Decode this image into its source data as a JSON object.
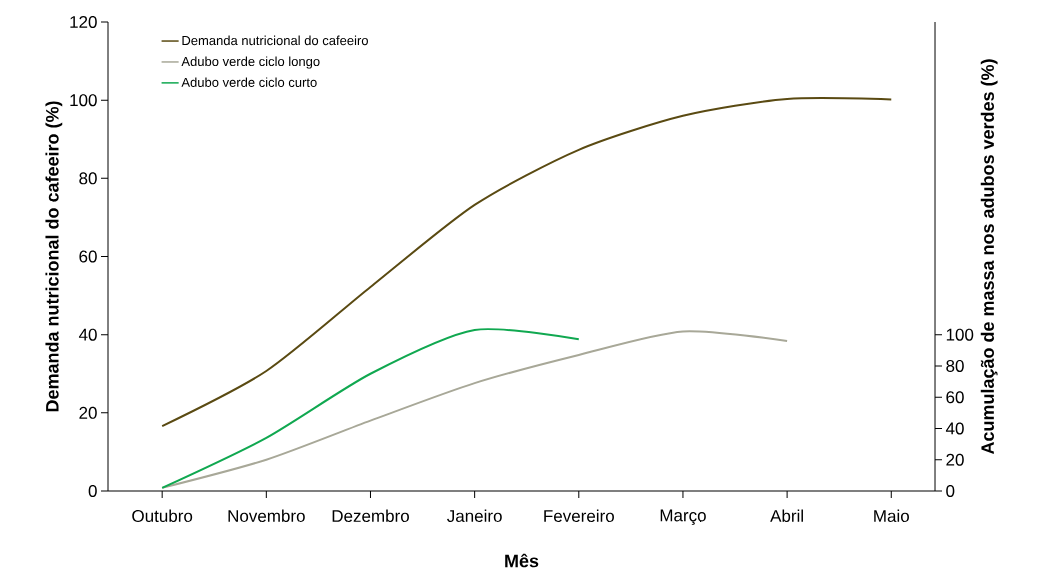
{
  "chart_data": {
    "type": "line",
    "xlabel": "Mês",
    "ylabel": "Demanda nutricional do cafeeiro (%)",
    "y2label": "Acumulação de massa nos adubos verdes (%)",
    "categories": [
      "Outubro",
      "Novembro",
      "Dezembro",
      "Janeiro",
      "Fevereiro",
      "Março",
      "Abril",
      "Maio"
    ],
    "series": [
      {
        "name": "Demanda nutricional do cafeeiro",
        "color": "#5a4a12",
        "values": [
          16.6,
          30.7,
          52.2,
          73.2,
          87.3,
          96,
          100.3,
          100.2
        ]
      },
      {
        "name": "Adubo verde ciclo longo",
        "color": "#a8a898",
        "axis": "y2",
        "values": [
          2,
          20,
          45,
          69,
          87,
          102,
          96,
          null
        ]
      },
      {
        "name": "Adubo verde ciclo curto",
        "color": "#10a850",
        "axis": "y2",
        "values": [
          2,
          34,
          75,
          103,
          97,
          null,
          null,
          null
        ]
      }
    ],
    "ylim": [
      0,
      120
    ],
    "yticks": [
      0,
      20,
      40,
      60,
      80,
      100,
      120
    ],
    "y2lim": [
      0,
      300
    ],
    "y2ticks": [
      0,
      20,
      40,
      60,
      80,
      100
    ],
    "legend": "top left"
  }
}
